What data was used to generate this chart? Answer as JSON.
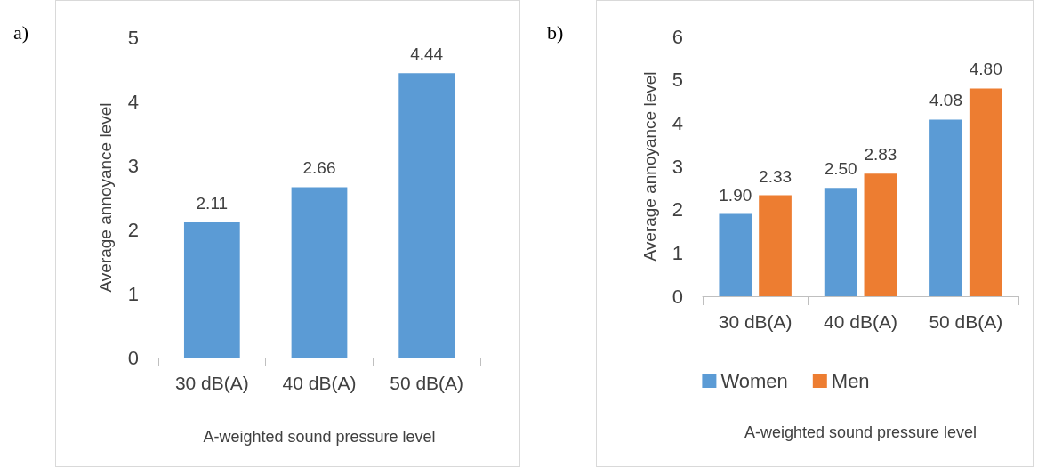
{
  "chart_data": [
    {
      "type": "bar",
      "title": "a)",
      "xlabel": "A-weighted sound pressure level",
      "ylabel": "Average annoyance level",
      "categories": [
        "30 dB(A)",
        "40 dB(A)",
        "50 dB(A)"
      ],
      "values": [
        2.11,
        2.66,
        4.44
      ],
      "value_labels": [
        "2.11",
        "2.66",
        "4.44"
      ],
      "color": "#5b9bd5",
      "ylim": [
        0,
        5
      ],
      "yticks": [
        0,
        1,
        2,
        3,
        4,
        5
      ]
    },
    {
      "type": "bar",
      "title": "b)",
      "xlabel": "A-weighted sound pressure level",
      "ylabel": "Average annoyance level",
      "categories": [
        "30 dB(A)",
        "40 dB(A)",
        "50 dB(A)"
      ],
      "series": [
        {
          "name": "Women",
          "color": "#5b9bd5",
          "values": [
            1.9,
            2.5,
            4.08
          ],
          "value_labels": [
            "1.90",
            "2.50",
            "4.08"
          ]
        },
        {
          "name": "Men",
          "color": "#ed7d31",
          "values": [
            2.33,
            2.83,
            4.8
          ],
          "value_labels": [
            "2.33",
            "2.83",
            "4.80"
          ]
        }
      ],
      "ylim": [
        0,
        6
      ],
      "yticks": [
        0,
        1,
        2,
        3,
        4,
        5,
        6
      ],
      "legend": "bottom"
    }
  ]
}
